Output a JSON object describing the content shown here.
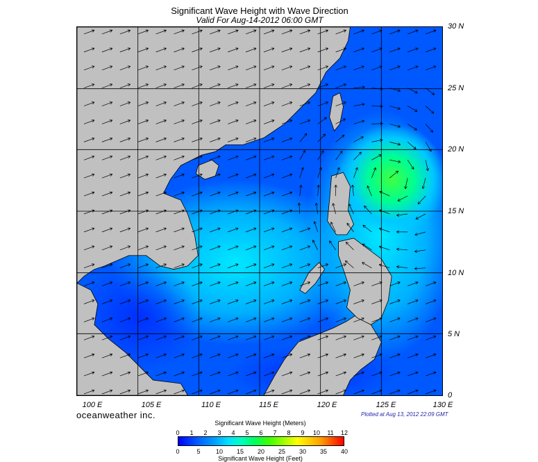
{
  "header": {
    "title": "Significant Wave Height with Wave Direction",
    "subtitle": "Valid For Aug-14-2012 06:00 GMT"
  },
  "axes": {
    "lat_labels": [
      "30 N",
      "25 N",
      "20 N",
      "15 N",
      "10 N",
      "5 N",
      "0"
    ],
    "lon_labels": [
      "100 E",
      "105 E",
      "110 E",
      "115 E",
      "120 E",
      "125 E",
      "130 E"
    ]
  },
  "footer": {
    "brand": "oceanweather inc.",
    "plotted": "Plotted at Aug 13, 2012 22:09 GMT"
  },
  "colorbar": {
    "meters_label": "Significant Wave Height (Meters)",
    "feet_label": "Significant Wave Height (Feet)",
    "meters_ticks": [
      "0",
      "1",
      "2",
      "3",
      "4",
      "5",
      "6",
      "7",
      "8",
      "9",
      "10",
      "11",
      "12"
    ],
    "feet_ticks": [
      "0",
      "5",
      "10",
      "15",
      "20",
      "25",
      "30",
      "35",
      "40"
    ]
  },
  "colors": {
    "land": "#c0c0c0",
    "sea_low": "#0000ff",
    "sea_mid": "#00a8ff",
    "sea_high": "#40ff40",
    "grid": "#000000"
  }
}
